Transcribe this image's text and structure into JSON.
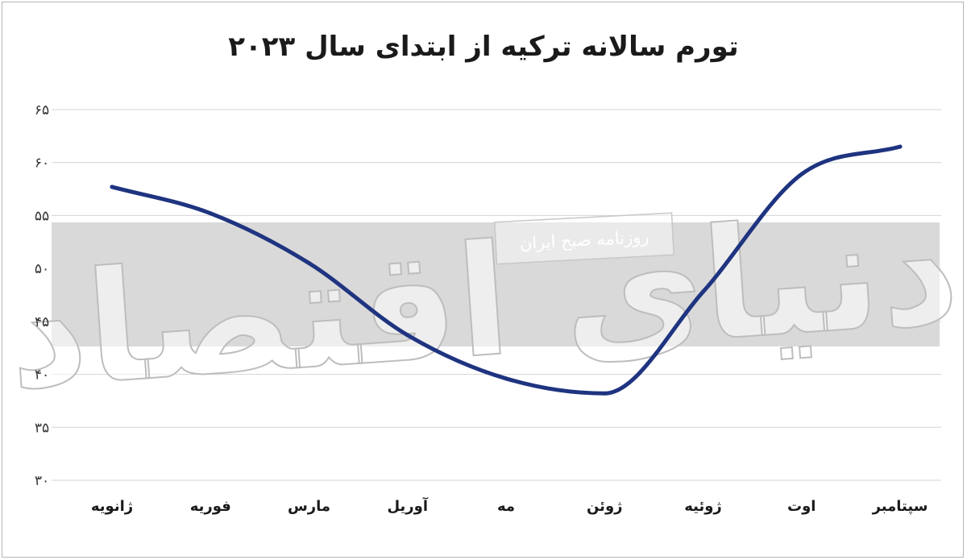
{
  "chart_data": {
    "type": "line",
    "title": "تورم سالانه ترکیه از ابتدای سال ۲۰۲۳",
    "xlabel": "",
    "ylabel": "",
    "categories": [
      "ژانویه",
      "فوریه",
      "مارس",
      "آوریل",
      "مه",
      "ژوئن",
      "ژوئیه",
      "اوت",
      "سپتامبر"
    ],
    "series": [
      {
        "values": [
          57.7,
          55.2,
          50.5,
          43.7,
          39.6,
          38.2,
          47.8,
          58.9,
          61.5
        ]
      }
    ],
    "ylim": [
      30,
      65
    ],
    "yticks": [
      30,
      35,
      40,
      45,
      50,
      55,
      60,
      65
    ],
    "ytick_labels": [
      "۳۰",
      "۳۵",
      "۴۰",
      "۴۵",
      "۵۰",
      "۵۵",
      "۶۰",
      "۶۵"
    ],
    "grid": true,
    "line_color": "#1f3480",
    "watermark": {
      "text": "دنیای اقتصاد",
      "tagline": "روزنامه صبح ایران"
    }
  }
}
